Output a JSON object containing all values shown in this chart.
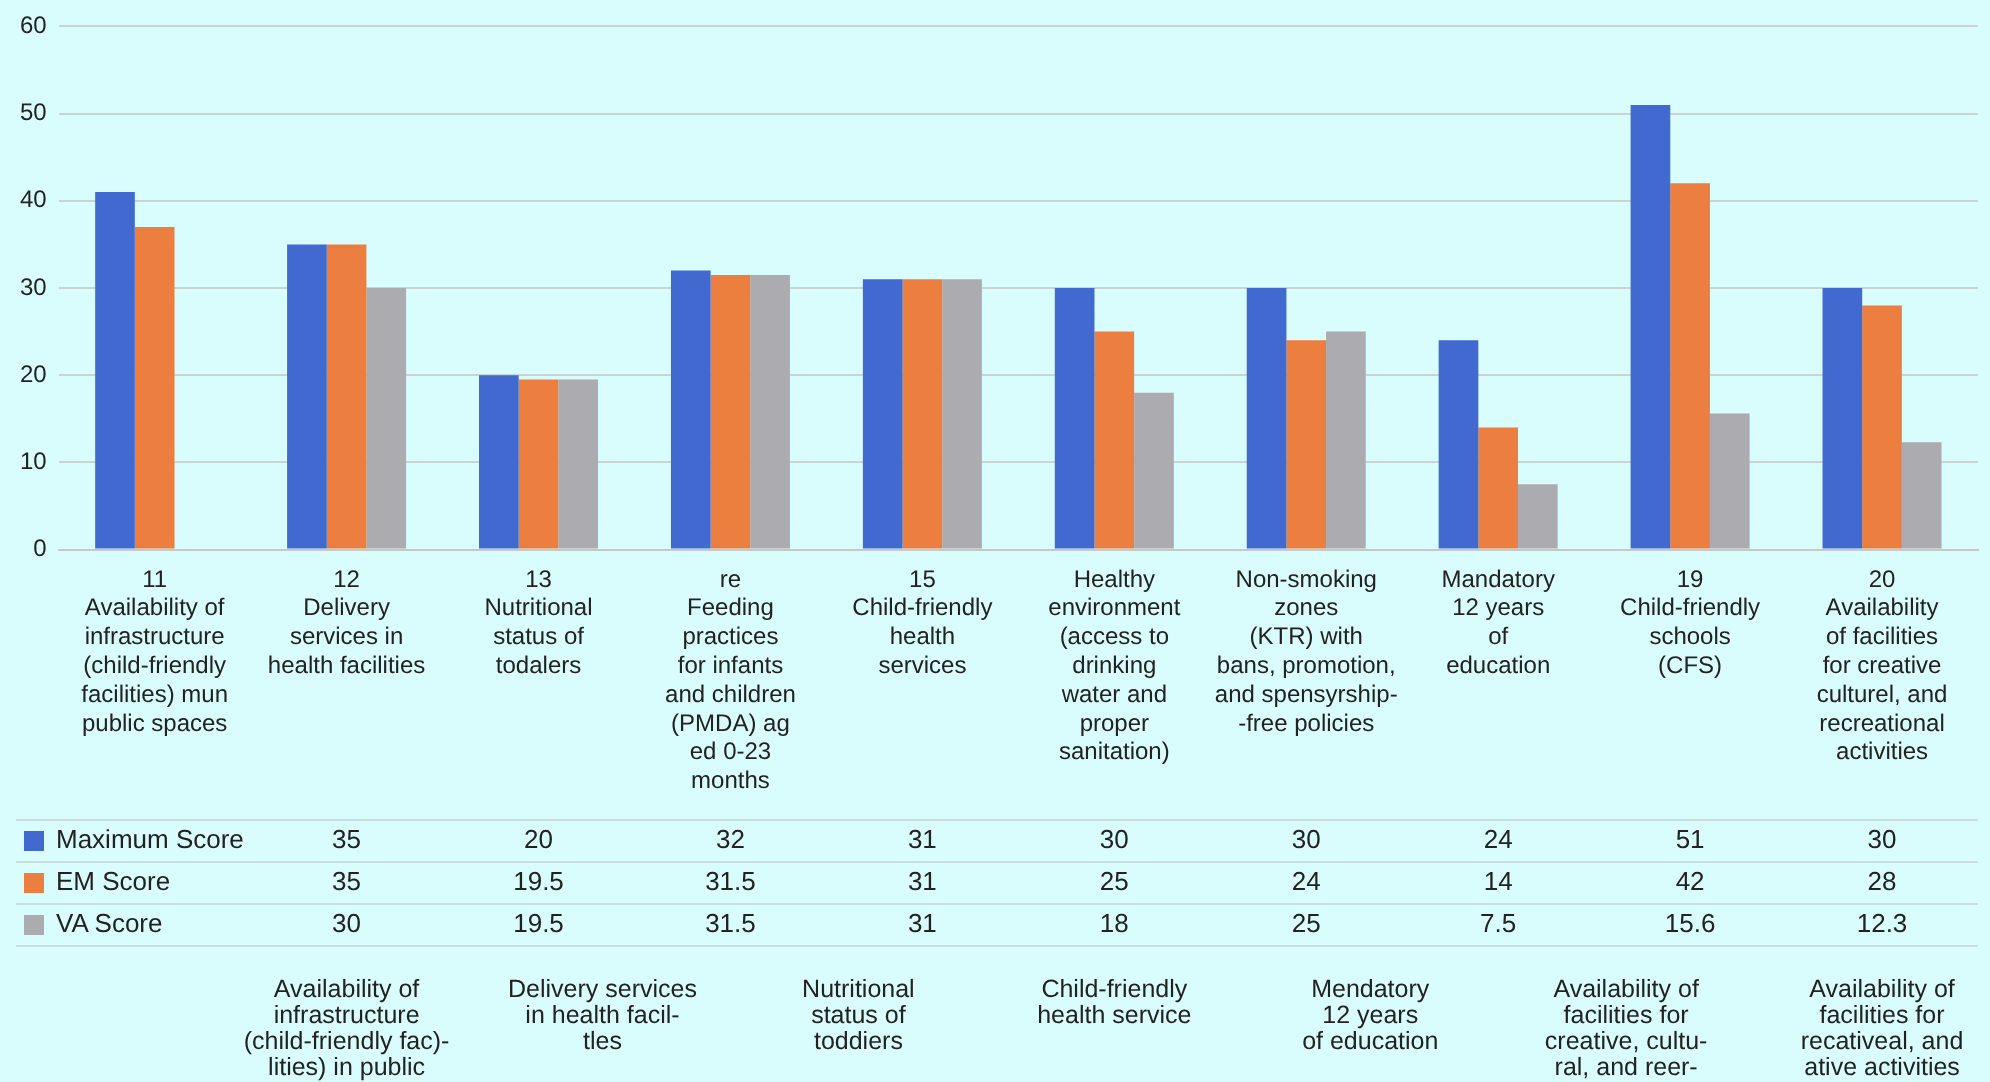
{
  "chart_data": {
    "type": "bar",
    "grid": "y",
    "legend": "bottom",
    "ylim": [
      0,
      60
    ],
    "yticks": [
      0,
      10,
      20,
      30,
      40,
      50,
      60
    ],
    "categories": [
      "11\nAvailability of\ninfrastructure\n(child-friendly\nfacilities) mun\npublic spaces",
      "12\nDelivery\nservices in\nhealth facilities",
      "13\nNutritional\nstatus of\ntodalers",
      "re\nFeeding\npractices\nfor infants\nand children\n(PMDA) ag\ned 0-23\nmonths",
      "15\nChild-friendly\nhealth\nservices",
      "Healthy\nenvironment\n(access to\ndrinking\nwater and\nproper\nsanitation)",
      "Non-smoking\nzones\n(KTR) with\nbans, promotion,\nand spensyrship-\n-free policies",
      "Mandatory\n12 years\nof\neducation",
      "19\nChild-friendly\nschools\n(CFS)",
      "20\nAvailability\nof facilities\nfor creative\nculturel, and\nrecreational\nactivities"
    ],
    "series": [
      {
        "name": "Maximum Score",
        "color": "#4169cf",
        "values": [
          41,
          35,
          20,
          32,
          31,
          30,
          30,
          24,
          51,
          30
        ],
        "value_labels": [
          null,
          "35",
          "20",
          "32",
          "31",
          "30",
          "30",
          "24",
          "51",
          "30"
        ]
      },
      {
        "name": "EM Score",
        "color": "#ec7e3f",
        "values": [
          37,
          35,
          19.5,
          31.5,
          31,
          25,
          24,
          14,
          42,
          28
        ],
        "value_labels": [
          null,
          "35",
          "19.5",
          "31.5",
          "31",
          "25",
          "24",
          "14",
          "42",
          "28"
        ]
      },
      {
        "name": "VA Score",
        "color": "#acacb0",
        "values": [
          null,
          30,
          19.5,
          31.5,
          31,
          18,
          25,
          7.5,
          15.6,
          12.3
        ],
        "value_labels": [
          null,
          "30",
          "19.5",
          "31.5",
          "31",
          "18",
          "25",
          "7.5",
          "15.6",
          "12.3"
        ]
      }
    ],
    "annotations": [
      "Availability of\ninfrastructure\n(child-friendly fac)-\nlities) in public",
      "Delivery services\nin health facil-\ntles",
      "Nutritional\nstatus of\ntoddiers",
      "Child-friendly\nhealth service",
      "Mendatory\n12 years\nof education",
      "Availability of\nfacilities for\ncreative, cultu-\nral, and reer-",
      "Availability of\nfacilities for\nrecativeal, and\native activities"
    ]
  }
}
